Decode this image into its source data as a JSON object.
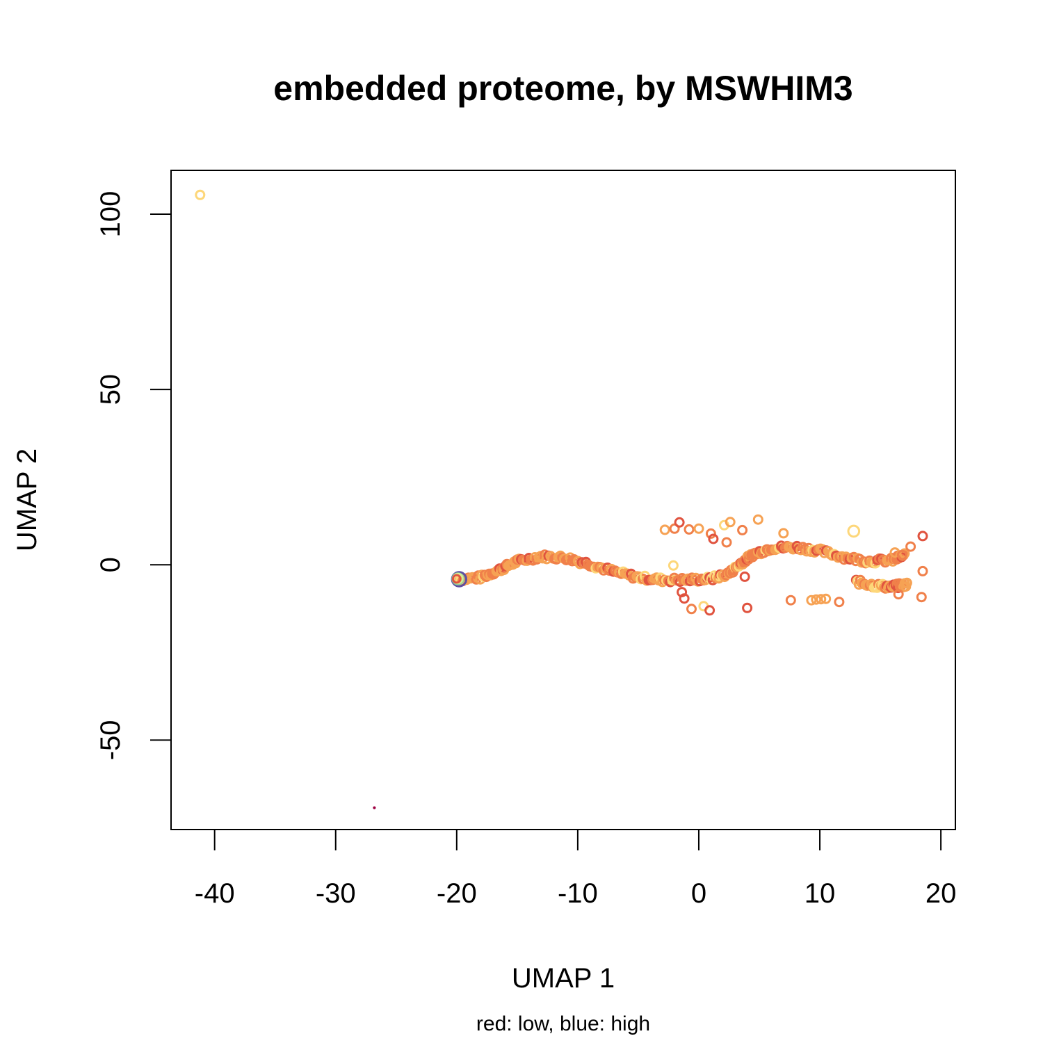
{
  "chart_data": {
    "type": "scatter",
    "title": "embedded proteome, by MSWHIM3",
    "xlabel": "UMAP 1",
    "ylabel": "UMAP 2",
    "subtitle": "red: low, blue: high",
    "xlim": [
      -43.6,
      21.2
    ],
    "ylim": [
      -75.5,
      112.5
    ],
    "x_ticks": [
      -40,
      -30,
      -20,
      -10,
      0,
      10,
      20
    ],
    "y_ticks": [
      -50,
      0,
      50,
      100
    ],
    "grid": false,
    "legend": "none",
    "colors": {
      "low": "#9e0142",
      "red": "#e0533f",
      "orange": "#f0804a",
      "light_orange": "#f6a254",
      "yellow": "#fdd77a",
      "light_green": "#d7ec93",
      "green": "#8cce9a",
      "blue": "#5e4fa2"
    },
    "points": [
      {
        "x": -41.2,
        "y": 105.5,
        "c": "yellow",
        "s": 1.0
      },
      {
        "x": -26.8,
        "y": -69.3,
        "c": "low",
        "s": 0.25
      },
      {
        "x": -2.8,
        "y": 10.0,
        "c": "light_orange",
        "s": 1.0
      },
      {
        "x": -2.0,
        "y": 10.3,
        "c": "orange",
        "s": 1.0
      },
      {
        "x": -1.6,
        "y": 12.1,
        "c": "red",
        "s": 1.0
      },
      {
        "x": -0.8,
        "y": 10.1,
        "c": "orange",
        "s": 1.0
      },
      {
        "x": 0.0,
        "y": 10.3,
        "c": "light_orange",
        "s": 1.0
      },
      {
        "x": 1.0,
        "y": 8.9,
        "c": "orange",
        "s": 1.0
      },
      {
        "x": 1.2,
        "y": 7.4,
        "c": "red",
        "s": 1.0
      },
      {
        "x": 2.1,
        "y": 11.3,
        "c": "yellow",
        "s": 1.0
      },
      {
        "x": 2.6,
        "y": 12.2,
        "c": "light_orange",
        "s": 1.0
      },
      {
        "x": 3.6,
        "y": 9.9,
        "c": "orange",
        "s": 1.0
      },
      {
        "x": 2.3,
        "y": 6.4,
        "c": "orange",
        "s": 1.0
      },
      {
        "x": 4.9,
        "y": 12.9,
        "c": "light_orange",
        "s": 1.0
      },
      {
        "x": 7.0,
        "y": 9.0,
        "c": "light_orange",
        "s": 1.0
      },
      {
        "x": 12.8,
        "y": 9.6,
        "c": "yellow",
        "s": 1.3
      },
      {
        "x": 18.5,
        "y": 8.2,
        "c": "red",
        "s": 1.0
      },
      {
        "x": 17.5,
        "y": 5.2,
        "c": "orange",
        "s": 1.0
      },
      {
        "x": -2.1,
        "y": -0.2,
        "c": "yellow",
        "s": 1.0
      },
      {
        "x": -1.4,
        "y": -7.8,
        "c": "red",
        "s": 1.0
      },
      {
        "x": -1.2,
        "y": -9.6,
        "c": "red",
        "s": 1.0
      },
      {
        "x": -0.6,
        "y": -12.6,
        "c": "orange",
        "s": 1.0
      },
      {
        "x": 0.4,
        "y": -11.8,
        "c": "yellow",
        "s": 1.0
      },
      {
        "x": 0.9,
        "y": -13.0,
        "c": "red",
        "s": 1.0
      },
      {
        "x": 3.8,
        "y": -3.4,
        "c": "red",
        "s": 1.0
      },
      {
        "x": 4.0,
        "y": -12.3,
        "c": "red",
        "s": 1.0
      },
      {
        "x": 7.6,
        "y": -10.1,
        "c": "orange",
        "s": 1.0
      },
      {
        "x": 9.3,
        "y": -10.1,
        "c": "light_orange",
        "s": 1.0
      },
      {
        "x": 9.7,
        "y": -9.9,
        "c": "light_orange",
        "s": 1.0
      },
      {
        "x": 10.1,
        "y": -9.8,
        "c": "light_orange",
        "s": 1.0
      },
      {
        "x": 10.5,
        "y": -9.7,
        "c": "light_orange",
        "s": 1.0
      },
      {
        "x": 11.6,
        "y": -10.6,
        "c": "orange",
        "s": 1.0
      },
      {
        "x": 16.5,
        "y": -8.4,
        "c": "orange",
        "s": 1.0
      },
      {
        "x": 18.4,
        "y": -9.2,
        "c": "orange",
        "s": 1.0
      },
      {
        "x": 18.5,
        "y": -1.8,
        "c": "orange",
        "s": 1.0
      },
      {
        "x": 16.2,
        "y": 3.5,
        "c": "light_orange",
        "s": 1.0
      },
      {
        "x": 16.8,
        "y": 2.8,
        "c": "orange",
        "s": 1.0
      },
      {
        "x": -19.8,
        "y": -4.1,
        "c": "blue",
        "s": 1.7
      },
      {
        "x": -19.9,
        "y": -4.0,
        "c": "green",
        "s": 1.3
      },
      {
        "x": -19.9,
        "y": -3.9,
        "c": "light_green",
        "s": 1.1
      },
      {
        "x": -20.0,
        "y": -4.0,
        "c": "red",
        "s": 0.9
      }
    ],
    "curve": [
      [
        -20.0,
        -4.2
      ],
      [
        -18.0,
        -3.6
      ],
      [
        -16.5,
        -1.5
      ],
      [
        -15.0,
        1.0
      ],
      [
        -13.0,
        2.4
      ],
      [
        -11.0,
        2.0
      ],
      [
        -9.0,
        0.2
      ],
      [
        -7.0,
        -2.0
      ],
      [
        -5.0,
        -3.6
      ],
      [
        -3.0,
        -4.3
      ],
      [
        -1.0,
        -4.3
      ],
      [
        1.0,
        -4.0
      ],
      [
        2.5,
        -2.5
      ],
      [
        3.5,
        0.5
      ],
      [
        4.5,
        3.0
      ],
      [
        6.0,
        4.8
      ],
      [
        8.0,
        5.0
      ],
      [
        10.0,
        4.0
      ],
      [
        12.0,
        2.2
      ],
      [
        14.0,
        1.0
      ],
      [
        16.0,
        1.3
      ],
      [
        17.0,
        2.8
      ]
    ],
    "lower_branch": [
      [
        13.0,
        -4.8
      ],
      [
        14.5,
        -5.9
      ],
      [
        16.0,
        -6.3
      ],
      [
        17.2,
        -5.6
      ]
    ]
  }
}
